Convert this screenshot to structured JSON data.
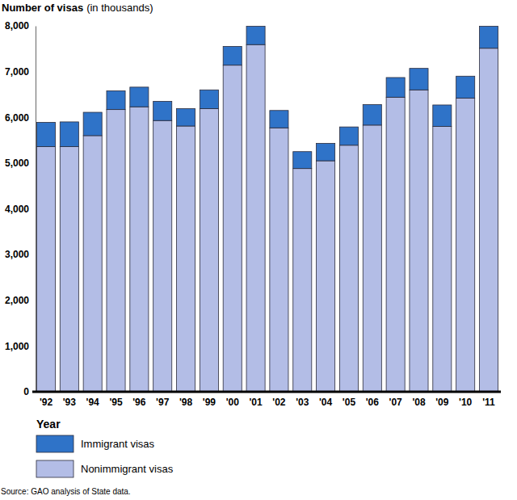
{
  "chart_data": {
    "type": "bar",
    "stacked": true,
    "y_label": "Number of visas",
    "y_label_units": "(in thousands)",
    "x_label": "Year",
    "source": "Source: GAO analysis of State data.",
    "categories": [
      "'92",
      "'93",
      "'94",
      "'95",
      "'96",
      "'97",
      "'98",
      "'99",
      "'00",
      "'01",
      "'02",
      "'03",
      "'04",
      "'05",
      "'06",
      "'07",
      "'08",
      "'09",
      "'10",
      "'11"
    ],
    "series": [
      {
        "name": "Nonimmigrant visas",
        "color": "#b3bde6",
        "values": [
          5360,
          5360,
          5600,
          6170,
          6230,
          5930,
          5810,
          6190,
          7140,
          7590,
          5770,
          4880,
          5050,
          5390,
          5830,
          6440,
          6600,
          5800,
          6420,
          7510
        ]
      },
      {
        "name": "Immigrant visas",
        "color": "#2f73c8",
        "values": [
          530,
          540,
          510,
          410,
          430,
          420,
          380,
          410,
          410,
          400,
          380,
          370,
          380,
          400,
          450,
          430,
          470,
          470,
          480,
          480
        ]
      }
    ],
    "ylim": [
      0,
      8000
    ],
    "yticks": [
      0,
      {
        "value": 1000,
        "label": "1,000"
      },
      {
        "value": 2000,
        "label": "2,000"
      },
      {
        "value": 3000,
        "label": "3,000"
      },
      {
        "value": 4000,
        "label": "4,000"
      },
      {
        "value": 5000,
        "label": "5,000"
      },
      {
        "value": 6000,
        "label": "6,000"
      },
      {
        "value": 7000,
        "label": "7,000"
      },
      {
        "value": 8000,
        "label": "8,000"
      }
    ],
    "grid": false,
    "legend": "bottom-left"
  }
}
